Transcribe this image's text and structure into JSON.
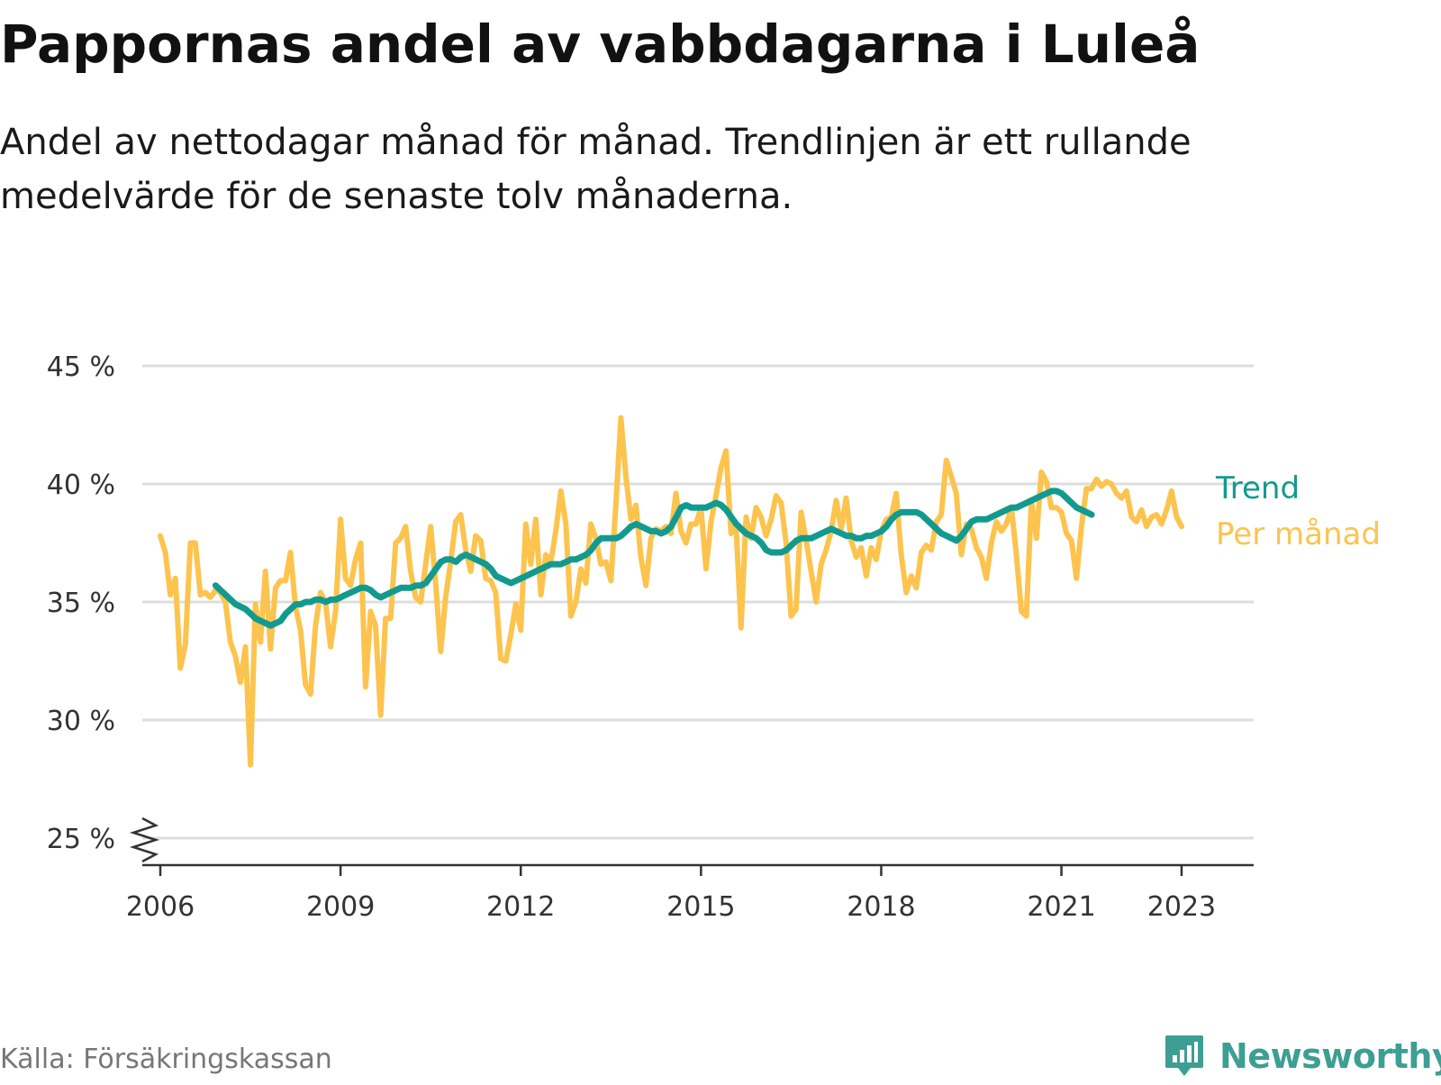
{
  "title": "Pappornas andel av vabbdagarna i Luleå",
  "subtitle": "Andel av nettodagar månad för månad. Trendlinjen är ett rullande medelvärde för de senaste tolv månaderna.",
  "source": "Källa: Försäkringskassan",
  "brand": {
    "name": "Newsworthy",
    "icon": "newsworthy-logo-icon"
  },
  "colors": {
    "trend": "#139a8e",
    "monthly": "#fcc44e",
    "grid": "#dddddd",
    "axis": "#333333",
    "brand": "#3d9f93"
  },
  "chart_data": {
    "type": "line",
    "ylim": [
      25,
      45
    ],
    "yticks": [
      25,
      30,
      35,
      40,
      45
    ],
    "ytick_labels": [
      "25 %",
      "30 %",
      "35 %",
      "40 %",
      "45 %"
    ],
    "xlim": [
      2005.7,
      2024.2
    ],
    "xticks": [
      2006,
      2009,
      2012,
      2015,
      2018,
      2021,
      2023
    ],
    "xtick_labels": [
      "2006",
      "2009",
      "2012",
      "2015",
      "2018",
      "2021",
      "2023"
    ],
    "y_axis_break": true,
    "grid": true,
    "legend": "inline-right",
    "series": [
      {
        "name": "Per månad",
        "color": "#fcc44e",
        "start": 2006.0,
        "step": 0.0833333,
        "values": [
          37.8,
          37.1,
          35.3,
          36.0,
          32.2,
          33.2,
          37.5,
          37.5,
          35.3,
          35.4,
          35.2,
          35.5,
          35.4,
          35.0,
          33.3,
          32.7,
          31.6,
          33.1,
          28.1,
          34.9,
          33.3,
          36.3,
          33.0,
          35.6,
          35.9,
          35.9,
          37.1,
          34.8,
          33.8,
          31.5,
          31.1,
          34.0,
          35.4,
          35.0,
          33.1,
          34.6,
          38.5,
          36.0,
          35.7,
          36.8,
          37.5,
          31.4,
          34.6,
          34.0,
          30.2,
          34.3,
          34.3,
          37.5,
          37.7,
          38.2,
          36.3,
          35.2,
          35.0,
          36.6,
          38.2,
          35.8,
          32.9,
          35.2,
          36.7,
          38.4,
          38.7,
          37.2,
          36.3,
          37.8,
          37.6,
          36.0,
          35.9,
          35.4,
          32.6,
          32.5,
          33.6,
          34.9,
          33.8,
          38.3,
          36.6,
          38.5,
          35.3,
          37.0,
          36.7,
          38.0,
          39.7,
          38.3,
          34.4,
          35.0,
          36.4,
          35.8,
          38.3,
          37.7,
          36.6,
          36.7,
          35.9,
          39.1,
          42.8,
          40.3,
          38.5,
          39.1,
          36.9,
          35.7,
          37.7,
          38.1,
          38.0,
          38.2,
          37.9,
          39.6,
          38.0,
          37.5,
          38.3,
          38.3,
          39.0,
          36.4,
          38.4,
          39.5,
          40.7,
          41.4,
          37.9,
          38.3,
          33.9,
          38.6,
          37.7,
          39.0,
          38.6,
          37.8,
          38.5,
          39.5,
          39.2,
          37.5,
          34.4,
          34.7,
          38.8,
          37.6,
          36.3,
          35.0,
          36.6,
          37.2,
          38.0,
          39.3,
          38.1,
          39.4,
          37.6,
          36.9,
          37.3,
          36.1,
          37.3,
          36.8,
          38.0,
          38.5,
          38.6,
          39.6,
          37.0,
          35.4,
          36.1,
          35.6,
          37.1,
          37.4,
          37.2,
          38.4,
          38.7,
          41.0,
          40.3,
          39.6,
          37.0,
          38.3,
          38.1,
          37.3,
          36.9,
          36.0,
          37.5,
          38.4,
          38.0,
          38.3,
          39.0,
          37.0,
          34.6,
          34.4,
          39.3,
          37.7,
          40.5,
          40.1,
          39.0,
          39.0,
          38.8,
          37.9,
          37.6,
          36.0,
          38.2,
          39.8,
          39.8,
          40.2,
          39.9,
          40.1,
          40.0,
          39.6,
          39.4,
          39.7,
          38.6,
          38.4,
          38.9,
          38.2,
          38.6,
          38.7,
          38.3,
          38.9,
          39.7,
          38.6,
          38.2
        ]
      },
      {
        "name": "Trend",
        "color": "#139a8e",
        "start": 2006.92,
        "step": 0.0833333,
        "values": [
          35.7,
          35.5,
          35.3,
          35.1,
          34.9,
          34.8,
          34.7,
          34.5,
          34.3,
          34.2,
          34.1,
          34.0,
          34.1,
          34.2,
          34.5,
          34.7,
          34.9,
          34.9,
          35.0,
          35.0,
          35.1,
          35.1,
          35.0,
          35.1,
          35.1,
          35.2,
          35.3,
          35.4,
          35.5,
          35.6,
          35.6,
          35.5,
          35.3,
          35.2,
          35.3,
          35.4,
          35.5,
          35.6,
          35.6,
          35.6,
          35.7,
          35.7,
          35.8,
          36.1,
          36.4,
          36.7,
          36.8,
          36.8,
          36.7,
          36.9,
          37.0,
          36.9,
          36.8,
          36.7,
          36.6,
          36.4,
          36.1,
          36.0,
          35.9,
          35.8,
          35.9,
          36.0,
          36.1,
          36.2,
          36.3,
          36.4,
          36.5,
          36.6,
          36.6,
          36.6,
          36.7,
          36.8,
          36.8,
          36.9,
          37.0,
          37.2,
          37.5,
          37.7,
          37.7,
          37.7,
          37.7,
          37.8,
          38.0,
          38.2,
          38.3,
          38.2,
          38.1,
          38.0,
          38.0,
          37.9,
          38.0,
          38.2,
          38.6,
          39.0,
          39.1,
          39.0,
          39.0,
          39.0,
          39.0,
          39.1,
          39.2,
          39.1,
          38.9,
          38.6,
          38.3,
          38.1,
          37.9,
          37.8,
          37.7,
          37.5,
          37.2,
          37.1,
          37.1,
          37.1,
          37.2,
          37.4,
          37.6,
          37.7,
          37.7,
          37.7,
          37.8,
          37.9,
          38.0,
          38.1,
          38.0,
          37.9,
          37.8,
          37.8,
          37.7,
          37.7,
          37.8,
          37.8,
          37.9,
          38.0,
          38.2,
          38.5,
          38.7,
          38.8,
          38.8,
          38.8,
          38.8,
          38.7,
          38.5,
          38.3,
          38.1,
          37.9,
          37.8,
          37.7,
          37.6,
          37.8,
          38.1,
          38.4,
          38.5,
          38.5,
          38.5,
          38.6,
          38.7,
          38.8,
          38.9,
          39.0,
          39.0,
          39.1,
          39.2,
          39.3,
          39.4,
          39.5,
          39.6,
          39.7,
          39.7,
          39.6,
          39.4,
          39.2,
          39.0,
          38.9,
          38.8,
          38.7
        ]
      }
    ]
  }
}
